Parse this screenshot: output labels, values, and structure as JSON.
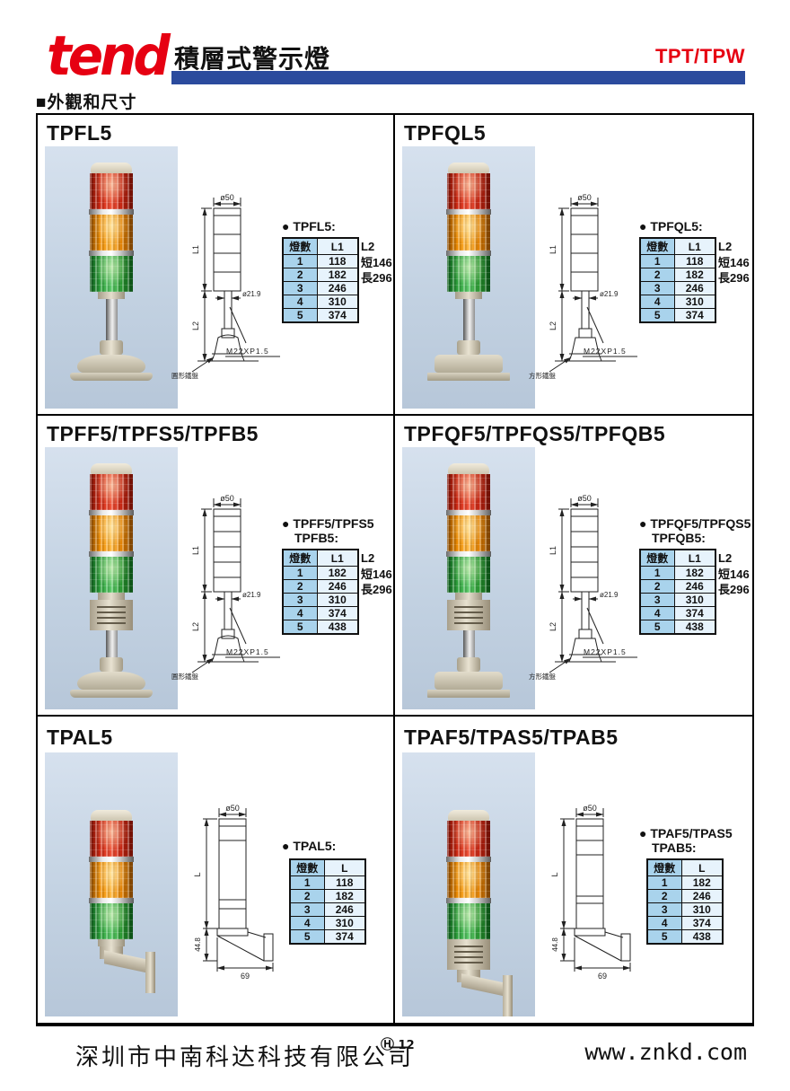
{
  "header": {
    "logo_text": "tend",
    "product_title": "積層式警示燈",
    "series_badge": "TPT/TPW"
  },
  "section": {
    "title": "■外觀和尺寸"
  },
  "colors": {
    "accent_red": "#e60012",
    "bar_blue": "#2b4b9d",
    "table_header_blue": "#a9d3ec",
    "table_cell_blue": "#e7f3fc",
    "lamp_red": "#d02a14",
    "lamp_orange": "#ef8c00",
    "lamp_green": "#2ea23c"
  },
  "panels": [
    {
      "title": "TPFL5",
      "label_lines": [
        "● TPFL5:"
      ],
      "columns": [
        "燈數",
        "L1"
      ],
      "rows": [
        [
          "1",
          "118"
        ],
        [
          "2",
          "182"
        ],
        [
          "3",
          "246"
        ],
        [
          "4",
          "310"
        ],
        [
          "5",
          "374"
        ]
      ],
      "l2": {
        "label": "L2",
        "short": "短146",
        "long": "長296"
      },
      "dims": {
        "top_dia": "ø50",
        "len1": "L1",
        "len2": "L2",
        "shaft_dia": "ø21.9",
        "thread": "M22XP1.5",
        "base_note": "圓形鐵盤"
      }
    },
    {
      "title": "TPFQL5",
      "label_lines": [
        "● TPFQL5:"
      ],
      "columns": [
        "燈數",
        "L1"
      ],
      "rows": [
        [
          "1",
          "118"
        ],
        [
          "2",
          "182"
        ],
        [
          "3",
          "246"
        ],
        [
          "4",
          "310"
        ],
        [
          "5",
          "374"
        ]
      ],
      "l2": {
        "label": "L2",
        "short": "短146",
        "long": "長296"
      },
      "dims": {
        "top_dia": "ø50",
        "len1": "L1",
        "len2": "L2",
        "shaft_dia": "ø21.9",
        "thread": "M22XP1.5",
        "base_note": "方形鐵盤"
      }
    },
    {
      "title": "TPFF5/TPFS5/TPFB5",
      "label_lines": [
        "● TPFF5/TPFS5",
        "TPFB5:"
      ],
      "columns": [
        "燈數",
        "L1"
      ],
      "rows": [
        [
          "1",
          "182"
        ],
        [
          "2",
          "246"
        ],
        [
          "3",
          "310"
        ],
        [
          "4",
          "374"
        ],
        [
          "5",
          "438"
        ]
      ],
      "l2": {
        "label": "L2",
        "short": "短146",
        "long": "長296"
      },
      "dims": {
        "top_dia": "ø50",
        "len1": "L1",
        "len2": "L2",
        "shaft_dia": "ø21.9",
        "thread": "M22XP1.5",
        "base_note": "圓形鐵盤"
      }
    },
    {
      "title": "TPFQF5/TPFQS5/TPFQB5",
      "label_lines": [
        "● TPFQF5/TPFQS5",
        "TPFQB5:"
      ],
      "columns": [
        "燈數",
        "L1"
      ],
      "rows": [
        [
          "1",
          "182"
        ],
        [
          "2",
          "246"
        ],
        [
          "3",
          "310"
        ],
        [
          "4",
          "374"
        ],
        [
          "5",
          "438"
        ]
      ],
      "l2": {
        "label": "L2",
        "short": "短146",
        "long": "長296"
      },
      "dims": {
        "top_dia": "ø50",
        "len1": "L1",
        "len2": "L2",
        "shaft_dia": "ø21.9",
        "thread": "M22XP1.5",
        "base_note": "方形鐵盤"
      }
    },
    {
      "title": "TPAL5",
      "label_lines": [
        "● TPAL5:"
      ],
      "columns": [
        "燈數",
        "L"
      ],
      "rows": [
        [
          "1",
          "118"
        ],
        [
          "2",
          "182"
        ],
        [
          "3",
          "246"
        ],
        [
          "4",
          "310"
        ],
        [
          "5",
          "374"
        ]
      ],
      "dims": {
        "top_dia": "ø50",
        "len": "L",
        "height": "44.8",
        "width": "69"
      }
    },
    {
      "title": "TPAF5/TPAS5/TPAB5",
      "label_lines": [
        "● TPAF5/TPAS5",
        "TPAB5:"
      ],
      "columns": [
        "燈數",
        "L"
      ],
      "rows": [
        [
          "1",
          "182"
        ],
        [
          "2",
          "246"
        ],
        [
          "3",
          "310"
        ],
        [
          "4",
          "374"
        ],
        [
          "5",
          "438"
        ]
      ],
      "dims": {
        "top_dia": "ø50",
        "len": "L",
        "height": "44.8",
        "width": "69"
      }
    }
  ],
  "footer": {
    "company": "深圳市中南科达科技有限公司",
    "reg_mark": "Ⓗ",
    "page_number": "12",
    "website": "www.znkd.com"
  }
}
